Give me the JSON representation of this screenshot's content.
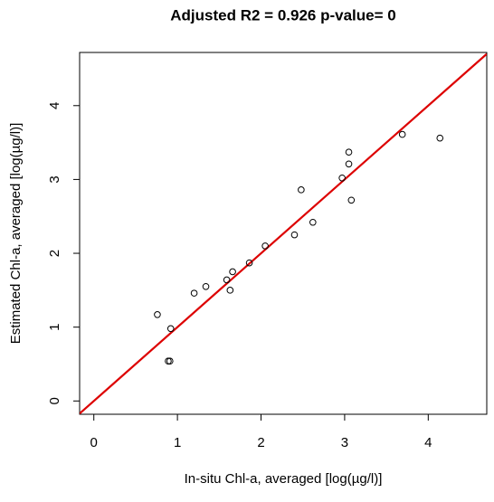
{
  "chart_data": {
    "type": "scatter",
    "title": "Adjusted R2 =  0.926 p-value= 0",
    "xlabel": "In-situ Chl-a, averaged [log(µg/l)]",
    "ylabel": "Estimated Chl-a, averaged [log(µg/l)]",
    "x": [
      0.76,
      0.92,
      0.89,
      0.91,
      1.2,
      1.34,
      1.59,
      1.66,
      1.63,
      1.86,
      2.05,
      2.4,
      2.48,
      2.62,
      2.97,
      3.05,
      3.05,
      3.08,
      3.69,
      4.14
    ],
    "values": [
      1.17,
      0.98,
      0.54,
      0.54,
      1.46,
      1.55,
      1.64,
      1.75,
      1.5,
      1.87,
      2.1,
      2.25,
      2.86,
      2.42,
      3.02,
      3.21,
      3.37,
      2.72,
      3.61,
      3.56
    ],
    "color": "#000000",
    "reference_line": {
      "slope": 1,
      "intercept": 0,
      "color": "#dd0000"
    },
    "xlim": [
      -0.17,
      4.7
    ],
    "ylim": [
      -0.18,
      4.72
    ],
    "xticks": [
      0,
      1,
      2,
      3,
      4
    ],
    "yticks": [
      0,
      1,
      2,
      3,
      4
    ]
  }
}
